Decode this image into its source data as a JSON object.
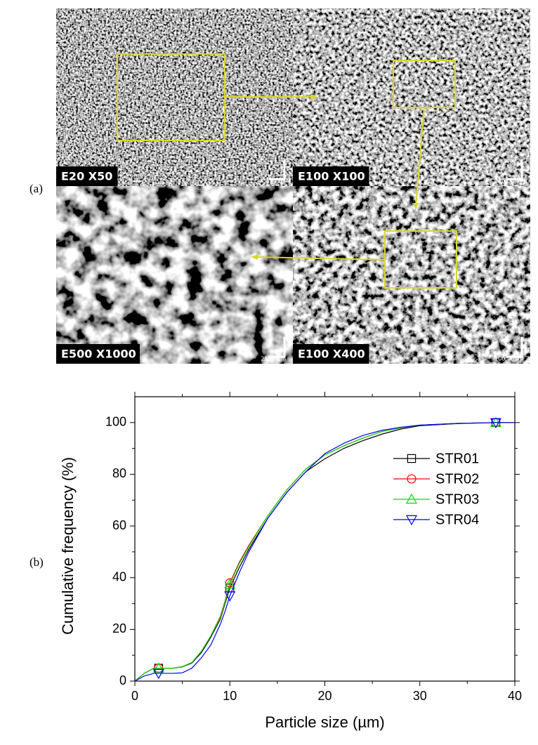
{
  "panels": {
    "a": {
      "label": "(a)",
      "images": [
        {
          "caption": "E20 X50",
          "scale": "500µm"
        },
        {
          "caption": "E100 X100",
          "scale": "250,00µm"
        },
        {
          "caption": "E500 X1000",
          "scale": "25,00µm"
        },
        {
          "caption": "E100 X400",
          "scale": "100,00µm"
        }
      ]
    },
    "b": {
      "label": "(b)"
    }
  },
  "chart_data": {
    "type": "line",
    "x_label": "Particle size (µm)",
    "y_label": "Cumulative frequency (%)",
    "x": [
      0,
      1,
      2,
      2.5,
      3,
      4,
      5,
      6,
      7,
      8,
      9,
      9.5,
      10,
      11,
      12,
      14,
      16,
      18,
      20,
      22,
      24,
      26,
      28,
      30,
      34,
      38,
      40
    ],
    "series": [
      {
        "name": "STR01",
        "color": "#000000",
        "marker": "square",
        "values": [
          0,
          3,
          5,
          5,
          5,
          5,
          5.5,
          7,
          11,
          17,
          24,
          30,
          36,
          44,
          51,
          63,
          73,
          81,
          86,
          90,
          93,
          95.5,
          97.5,
          98.8,
          99.6,
          100,
          100
        ]
      },
      {
        "name": "STR02",
        "color": "#ff0000",
        "marker": "circle",
        "values": [
          0,
          3,
          5,
          5,
          5,
          5,
          5.6,
          7.2,
          11.5,
          17.5,
          25,
          31,
          38,
          46,
          52.5,
          64,
          74,
          82,
          87.5,
          91,
          94,
          96.5,
          98,
          99,
          99.7,
          100,
          100
        ]
      },
      {
        "name": "STR03",
        "color": "#00dd00",
        "marker": "triangle-up",
        "values": [
          0,
          3,
          5,
          5,
          5,
          5,
          5.6,
          7.2,
          11.5,
          17.5,
          24.5,
          30.5,
          37.5,
          45.5,
          52,
          64,
          74,
          82,
          87.5,
          91,
          94,
          96.5,
          98,
          99,
          99.7,
          100,
          100
        ]
      },
      {
        "name": "STR04",
        "color": "#0000ff",
        "marker": "triangle-down",
        "values": [
          0,
          2,
          3,
          3,
          3,
          3,
          3.2,
          5,
          9,
          14,
          22,
          27,
          33,
          42,
          50,
          63,
          73,
          81,
          88,
          92,
          95,
          97,
          98.2,
          99,
          99.7,
          100,
          100
        ]
      }
    ],
    "marker_x": [
      2.5,
      10,
      38
    ],
    "xlim": [
      0,
      40
    ],
    "xticks": [
      0,
      10,
      20,
      30,
      40
    ],
    "ylim": [
      0,
      110
    ],
    "yticks": [
      0,
      20,
      40,
      60,
      80,
      100
    ],
    "legend": "right"
  }
}
